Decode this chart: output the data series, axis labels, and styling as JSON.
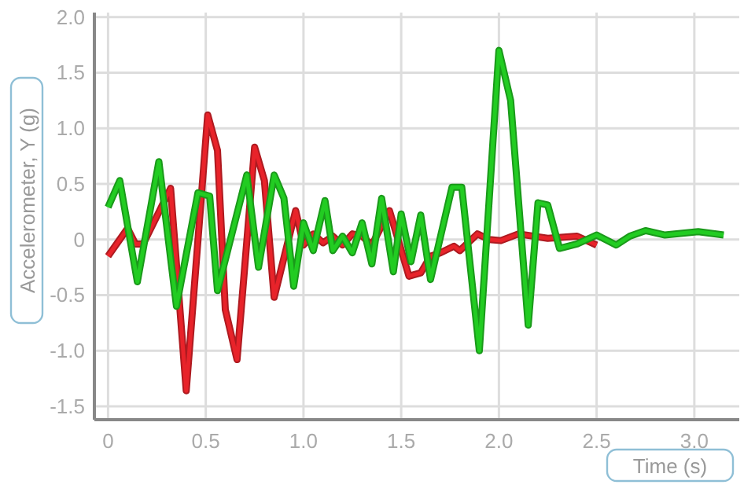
{
  "chart_data": {
    "type": "line",
    "xlabel": "Time (s)",
    "ylabel": "Accelerometer, Y (g)",
    "xlim": [
      -0.07,
      3.23
    ],
    "ylim": [
      -1.62,
      2.04
    ],
    "xticks": [
      {
        "value": 0,
        "label": "0"
      },
      {
        "value": 0.5,
        "label": "0.5"
      },
      {
        "value": 1,
        "label": "1.0"
      },
      {
        "value": 1.5,
        "label": "1.5"
      },
      {
        "value": 2,
        "label": "2.0"
      },
      {
        "value": 2.5,
        "label": "2.5"
      },
      {
        "value": 3,
        "label": "3.0"
      }
    ],
    "yticks": [
      {
        "value": -1.5,
        "label": "-1.5"
      },
      {
        "value": -1,
        "label": "-1.0"
      },
      {
        "value": -0.5,
        "label": "-0.5"
      },
      {
        "value": 0,
        "label": "0"
      },
      {
        "value": 0.5,
        "label": "0.5"
      },
      {
        "value": 1,
        "label": "1.0"
      },
      {
        "value": 1.5,
        "label": "1.5"
      },
      {
        "value": 2,
        "label": "2.0"
      }
    ],
    "grid": true,
    "marker": "none",
    "line_style": "solid",
    "series": [
      {
        "color": "#e8232a",
        "x": [
          0,
          0.1,
          0.14,
          0.18,
          0.32,
          0.4,
          0.51,
          0.56,
          0.6,
          0.66,
          0.75,
          0.8,
          0.85,
          0.96,
          1.0,
          1.05,
          1.1,
          1.15,
          1.2,
          1.25,
          1.3,
          1.35,
          1.44,
          1.54,
          1.6,
          1.65,
          1.7,
          1.77,
          1.8,
          1.89,
          1.95,
          2.01,
          2.1,
          2.25,
          2.4,
          2.5
        ],
        "values": [
          -0.15,
          0.1,
          -0.04,
          -0.04,
          0.46,
          -1.36,
          1.12,
          0.8,
          -0.63,
          -1.08,
          0.83,
          0.53,
          -0.52,
          0.26,
          -0.05,
          0.05,
          -0.03,
          0.03,
          -0.05,
          0.05,
          0.03,
          -0.05,
          0.26,
          -0.33,
          -0.3,
          -0.15,
          -0.12,
          -0.06,
          -0.1,
          0.05,
          0.0,
          -0.01,
          0.05,
          0.01,
          0.03,
          -0.05
        ]
      },
      {
        "color": "#22cc22",
        "x": [
          0,
          0.06,
          0.15,
          0.26,
          0.35,
          0.46,
          0.52,
          0.56,
          0.71,
          0.77,
          0.85,
          0.9,
          0.95,
          1.0,
          1.05,
          1.11,
          1.15,
          1.2,
          1.25,
          1.3,
          1.35,
          1.4,
          1.46,
          1.5,
          1.55,
          1.6,
          1.65,
          1.76,
          1.81,
          1.9,
          2.0,
          2.06,
          2.15,
          2.2,
          2.25,
          2.31,
          2.4,
          2.5,
          2.6,
          2.67,
          2.75,
          2.85,
          3.02,
          3.15
        ],
        "values": [
          0.29,
          0.53,
          -0.38,
          0.7,
          -0.6,
          0.42,
          0.39,
          -0.46,
          0.58,
          -0.25,
          0.58,
          0.37,
          -0.42,
          0.15,
          -0.1,
          0.35,
          -0.1,
          0.03,
          -0.12,
          0.15,
          -0.22,
          0.37,
          -0.29,
          0.23,
          -0.2,
          0.22,
          -0.36,
          0.47,
          0.47,
          -1.0,
          1.7,
          1.25,
          -0.77,
          0.33,
          0.31,
          -0.08,
          -0.04,
          0.04,
          -0.05,
          0.03,
          0.08,
          0.04,
          0.07,
          0.04
        ]
      }
    ]
  }
}
